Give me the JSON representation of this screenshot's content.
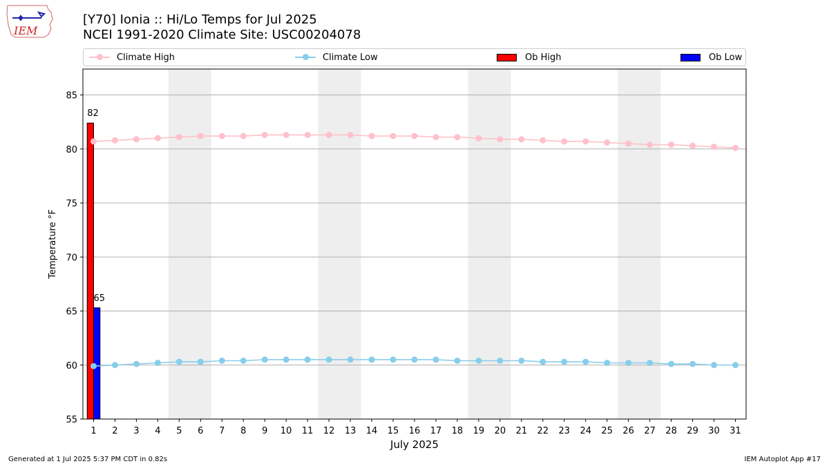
{
  "header": {
    "title_line1": "[Y70] Ionia :: Hi/Lo Temps for Jul 2025",
    "title_line2": "NCEI 1991-2020 Climate Site: USC00204078",
    "logo_text": "IEM"
  },
  "legend": {
    "climate_high": "Climate High",
    "climate_low": "Climate Low",
    "ob_high": "Ob High",
    "ob_low": "Ob Low"
  },
  "colors": {
    "climate_high": "#ffc0cb",
    "climate_low": "#87ceeb",
    "ob_high": "#ff0000",
    "ob_low": "#0000ff",
    "weekend_shade": "#eeeeee"
  },
  "footer": {
    "generated": "Generated at 1 Jul 2025 5:37 PM CDT in 0.82s",
    "app": "IEM Autoplot App #17"
  },
  "chart_data": {
    "type": "bar",
    "xlabel": "July 2025",
    "ylabel": "Temperature °F",
    "xlim": [
      0.5,
      31.5
    ],
    "ylim": [
      55,
      87.4
    ],
    "yticks": [
      55,
      60,
      65,
      70,
      75,
      80,
      85
    ],
    "grid": "horizontal",
    "legend_position": "top",
    "shaded_day_ranges": [
      [
        5,
        6
      ],
      [
        12,
        13
      ],
      [
        19,
        20
      ],
      [
        26,
        27
      ]
    ],
    "x": [
      1,
      2,
      3,
      4,
      5,
      6,
      7,
      8,
      9,
      10,
      11,
      12,
      13,
      14,
      15,
      16,
      17,
      18,
      19,
      20,
      21,
      22,
      23,
      24,
      25,
      26,
      27,
      28,
      29,
      30,
      31
    ],
    "series": [
      {
        "name": "Climate High",
        "kind": "line",
        "values": [
          80.7,
          80.8,
          80.9,
          81.0,
          81.1,
          81.2,
          81.2,
          81.2,
          81.3,
          81.3,
          81.3,
          81.3,
          81.3,
          81.2,
          81.2,
          81.2,
          81.1,
          81.1,
          81.0,
          80.9,
          80.9,
          80.8,
          80.7,
          80.7,
          80.6,
          80.5,
          80.4,
          80.4,
          80.3,
          80.2,
          80.1
        ]
      },
      {
        "name": "Climate Low",
        "kind": "line",
        "values": [
          59.9,
          60.0,
          60.1,
          60.2,
          60.3,
          60.3,
          60.4,
          60.4,
          60.5,
          60.5,
          60.5,
          60.5,
          60.5,
          60.5,
          60.5,
          60.5,
          60.5,
          60.4,
          60.4,
          60.4,
          60.4,
          60.3,
          60.3,
          60.3,
          60.2,
          60.2,
          60.2,
          60.1,
          60.1,
          60.0,
          60.0
        ]
      },
      {
        "name": "Ob High",
        "kind": "bar",
        "x": [
          1
        ],
        "values": [
          82.4
        ],
        "labels": [
          "82"
        ]
      },
      {
        "name": "Ob Low",
        "kind": "bar",
        "x": [
          1
        ],
        "values": [
          65.3
        ],
        "labels": [
          "65"
        ]
      }
    ]
  }
}
